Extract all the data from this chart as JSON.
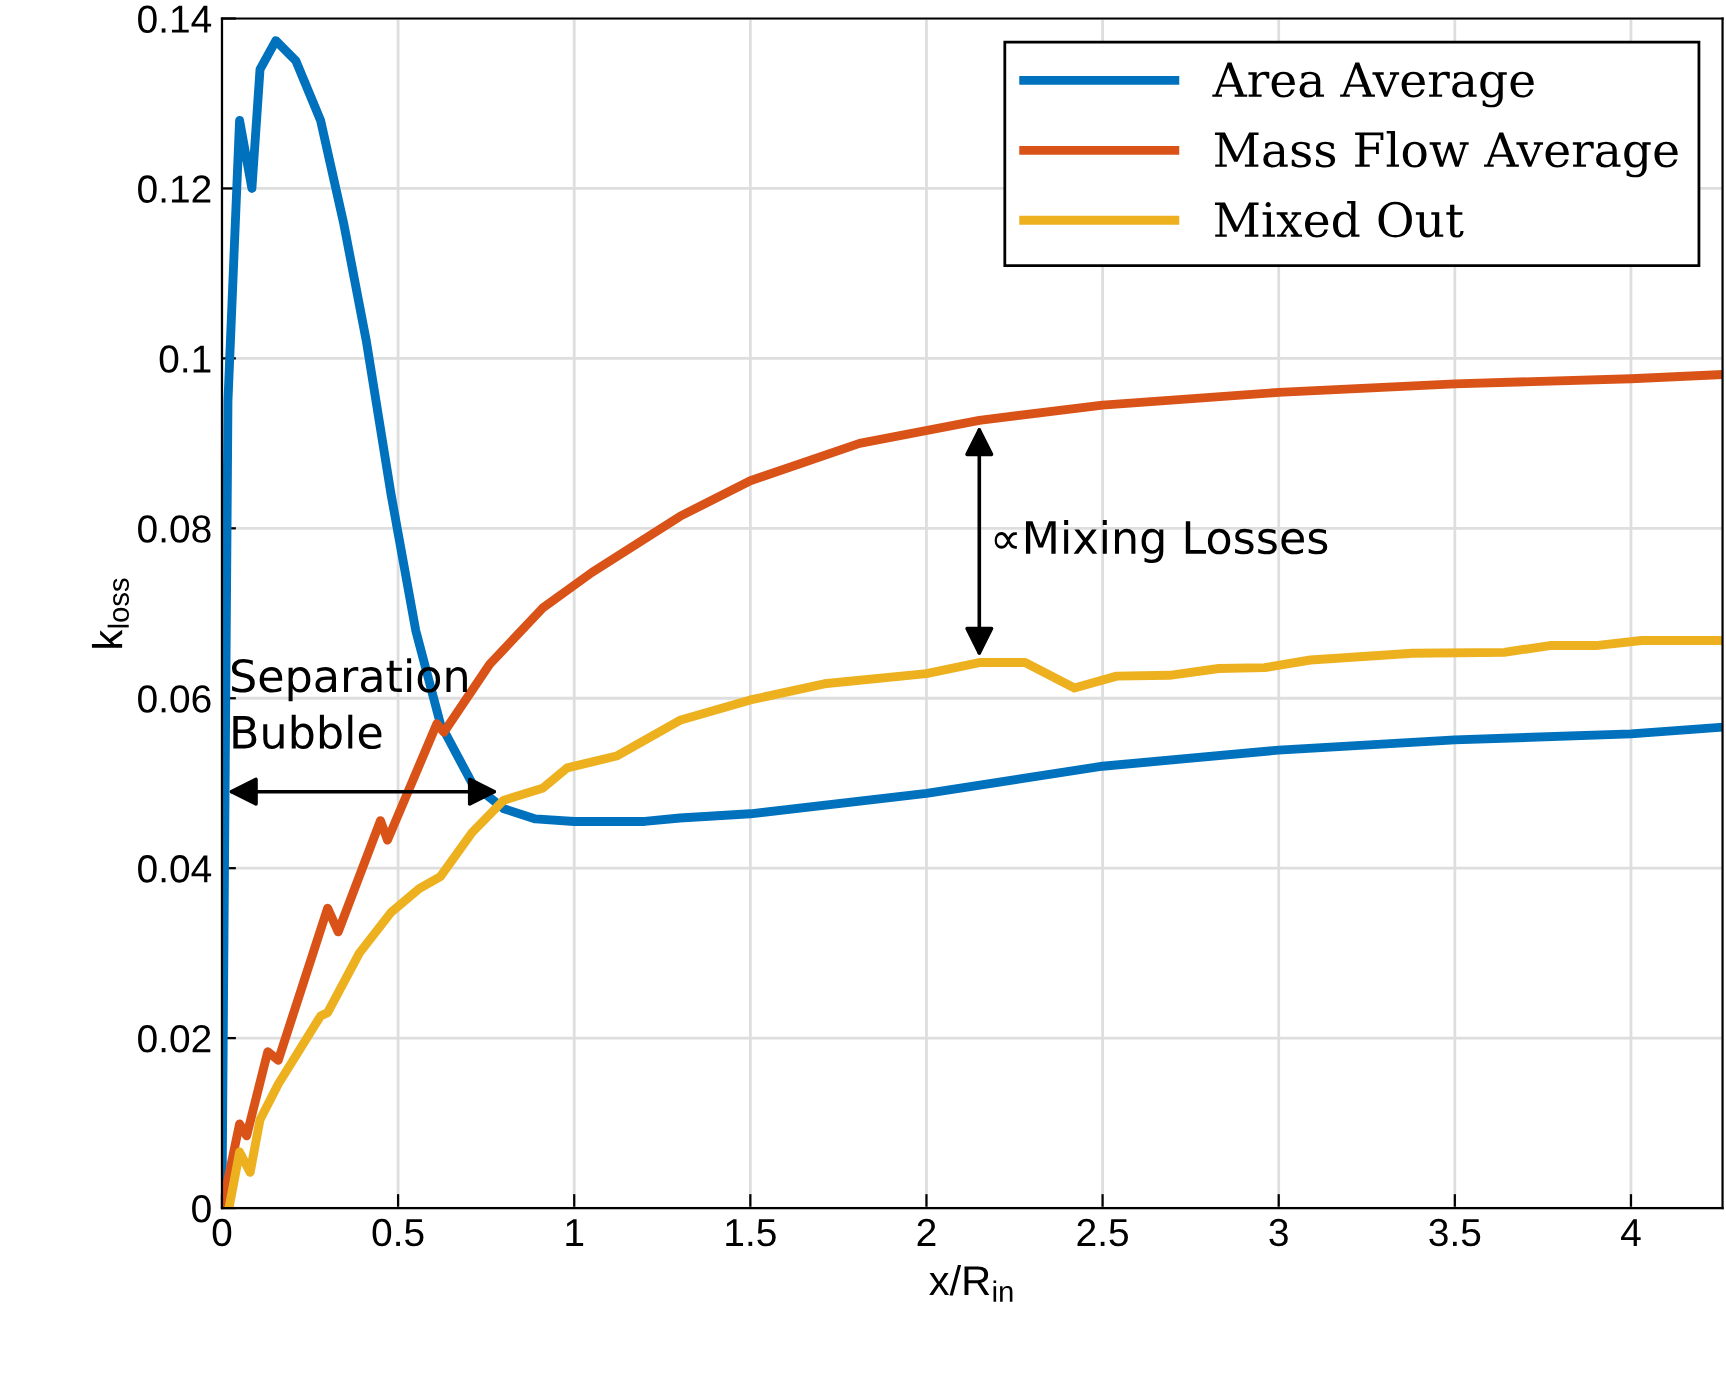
{
  "chart_data": {
    "type": "line",
    "xlabel": "x/R$_{in}$",
    "ylabel": "k$_{loss}$",
    "xlim": [
      0,
      4.26
    ],
    "ylim": [
      0,
      0.14
    ],
    "xticks": [
      0,
      0.5,
      1,
      1.5,
      2,
      2.5,
      3,
      3.5,
      4
    ],
    "yticks": [
      0,
      0.02,
      0.04,
      0.06,
      0.08,
      0.1,
      0.12,
      0.14
    ],
    "grid": true,
    "legend": "top right",
    "marker": "none",
    "line_style": "solid",
    "annotations": [
      {
        "text": "Separation\nBubble",
        "x": 0.8,
        "y": 0.049
      },
      {
        "text": "∝Mixing Losses",
        "x": 2.15,
        "y": 0.0927
      }
    ],
    "series": [
      {
        "name": "Area Average",
        "color": "#0072bd",
        "x": [
          0,
          0.017,
          0.05,
          0.085,
          0.108,
          0.153,
          0.21,
          0.28,
          0.345,
          0.41,
          0.48,
          0.55,
          0.62,
          0.71,
          0.8,
          0.89,
          1.0,
          1.2,
          1.3,
          1.5,
          2.0,
          2.5,
          3.0,
          3.5,
          4.0,
          4.26
        ],
        "values": [
          0,
          0.095,
          0.128,
          0.12,
          0.134,
          0.1374,
          0.135,
          0.128,
          0.116,
          0.102,
          0.084,
          0.068,
          0.057,
          0.05,
          0.047,
          0.0458,
          0.0455,
          0.0455,
          0.0459,
          0.0464,
          0.0488,
          0.052,
          0.0539,
          0.0551,
          0.0558,
          0.0566
        ]
      },
      {
        "name": "Mass Flow Average",
        "color": "#d95319",
        "x": [
          0,
          0.05,
          0.07,
          0.13,
          0.16,
          0.3,
          0.33,
          0.45,
          0.47,
          0.61,
          0.63,
          0.76,
          0.91,
          1.05,
          1.3,
          1.5,
          1.81,
          2.15,
          2.5,
          3.0,
          3.5,
          4.0,
          4.26
        ],
        "values": [
          0,
          0.0099,
          0.0085,
          0.0184,
          0.0174,
          0.0353,
          0.0325,
          0.0456,
          0.0433,
          0.057,
          0.056,
          0.064,
          0.0706,
          0.0748,
          0.0814,
          0.0856,
          0.09,
          0.0927,
          0.0945,
          0.096,
          0.097,
          0.0976,
          0.0981
        ]
      },
      {
        "name": "Mixed Out",
        "color": "#edb120",
        "x": [
          0.02,
          0.05,
          0.08,
          0.108,
          0.16,
          0.28,
          0.3,
          0.39,
          0.48,
          0.56,
          0.62,
          0.71,
          0.8,
          0.91,
          0.98,
          1.12,
          1.3,
          1.5,
          1.71,
          2.0,
          2.15,
          2.28,
          2.42,
          2.54,
          2.69,
          2.83,
          2.96,
          3.09,
          3.38,
          3.64,
          3.77,
          3.9,
          4.03,
          4.26
        ],
        "values": [
          0,
          0.0066,
          0.0042,
          0.0104,
          0.0146,
          0.0226,
          0.023,
          0.03,
          0.0348,
          0.0376,
          0.039,
          0.0442,
          0.048,
          0.0494,
          0.0518,
          0.0532,
          0.0574,
          0.0598,
          0.0617,
          0.0629,
          0.0642,
          0.0642,
          0.0612,
          0.0626,
          0.0627,
          0.0635,
          0.0636,
          0.0645,
          0.0653,
          0.0654,
          0.0662,
          0.0662,
          0.0668,
          0.0668
        ]
      }
    ]
  }
}
